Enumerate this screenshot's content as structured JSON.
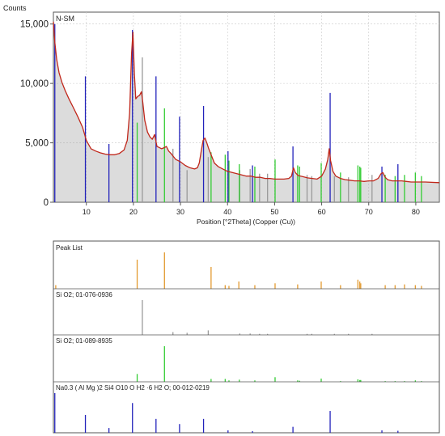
{
  "colors": {
    "profile": "#c0271b",
    "profile_fill": "#9a9a9a",
    "sio2_a": "#9a9a9a",
    "sio2_b": "#33cc33",
    "smectite": "#2222bb",
    "peaklist": "#e39a2f",
    "frame": "#555555",
    "grid": "#c8c8c8"
  },
  "chart_data": [
    {
      "type": "line",
      "title": "",
      "ylabel": "Counts",
      "xlabel": "Position [°2Theta] (Copper (Cu))",
      "sample_label": "N-SM",
      "xlim": [
        3,
        85
      ],
      "ylim": [
        0,
        16000
      ],
      "x_ticks": [
        10,
        20,
        30,
        40,
        50,
        60,
        70,
        80
      ],
      "y_ticks": [
        {
          "value": 0,
          "label": "0"
        },
        {
          "value": 5000,
          "label": "5,000"
        },
        {
          "value": 10000,
          "label": "10,000"
        },
        {
          "value": 15000,
          "label": "15,000"
        }
      ],
      "series": [
        {
          "role": "observed profile",
          "x": [
            3,
            3.3,
            3.7,
            4.2,
            4.8,
            5.5,
            6.3,
            7.2,
            8.2,
            9.2,
            10,
            11,
            12,
            13,
            14,
            15,
            16,
            17,
            18,
            18.7,
            19.2,
            19.6,
            19.9,
            20.2,
            20.5,
            20.9,
            21.3,
            21.7,
            22,
            22.4,
            23,
            23.5,
            24,
            24.5,
            25,
            25.5,
            26,
            26.6,
            27,
            27.5,
            28,
            29,
            30,
            31,
            32,
            33,
            33.6,
            34,
            34.4,
            34.8,
            35.2,
            35.6,
            36,
            36.6,
            37.2,
            38,
            39,
            40,
            41,
            42,
            43,
            44,
            45,
            46,
            47,
            48,
            49,
            50,
            51,
            52,
            53,
            53.6,
            54,
            54.4,
            55,
            56,
            57,
            58,
            59,
            60,
            60.8,
            61.3,
            61.6,
            61.9,
            62.4,
            63,
            64,
            65,
            66,
            67,
            68,
            69,
            70,
            71,
            72,
            72.6,
            73,
            73.5,
            74,
            75,
            76,
            77,
            78,
            79,
            80,
            82,
            85
          ],
          "y": [
            15200,
            13500,
            12000,
            10900,
            10100,
            9400,
            8700,
            8000,
            7200,
            6300,
            5200,
            4500,
            4300,
            4150,
            4050,
            4000,
            4000,
            4100,
            4400,
            5200,
            7500,
            12500,
            14300,
            10800,
            8700,
            8900,
            9000,
            9300,
            8400,
            6900,
            5900,
            5500,
            5300,
            5700,
            4700,
            4600,
            4500,
            4600,
            4700,
            4300,
            4100,
            3600,
            3400,
            3100,
            2900,
            2800,
            2900,
            3300,
            4300,
            5200,
            5400,
            5000,
            4500,
            3900,
            3300,
            3000,
            2800,
            2600,
            2500,
            2400,
            2300,
            2200,
            2200,
            2100,
            2100,
            2000,
            2000,
            1950,
            1950,
            1950,
            2000,
            2200,
            2900,
            2500,
            2250,
            2150,
            2050,
            2000,
            1950,
            2200,
            2800,
            3600,
            4500,
            3500,
            2600,
            2200,
            2000,
            1900,
            1850,
            1800,
            1800,
            1750,
            1800,
            1800,
            2000,
            2400,
            2500,
            2100,
            1900,
            1800,
            1800,
            1800,
            1750,
            1700,
            1700,
            1700,
            1650
          ]
        },
        {
          "name": "Na0.3 ( Al Mg )2 Si4 O10 O H2 ·6 H2 O; 00-012-0219",
          "role": "reference sticks",
          "x": [
            3.3,
            9.8,
            14.8,
            19.8,
            24.8,
            29.8,
            34.9,
            40.1,
            45.3,
            53.9,
            61.8,
            72.8,
            76.2
          ],
          "y": [
            15000,
            10600,
            4900,
            14500,
            10600,
            7200,
            8100,
            4300,
            3100,
            4700,
            9200,
            3000,
            3200
          ]
        },
        {
          "name": "Si O2; 01-089-8935",
          "role": "reference sticks",
          "x": [
            20.8,
            26.6,
            36.5,
            39.5,
            40.3,
            42.5,
            45.8,
            50.1,
            54.9,
            55.3,
            59.9,
            64.0,
            67.7,
            68.1,
            68.3,
            73.5,
            75.6,
            77.6,
            79.9,
            81.2
          ],
          "y": [
            6700,
            7900,
            4200,
            4000,
            3500,
            3200,
            3000,
            3600,
            3100,
            3000,
            3300,
            2500,
            3100,
            3000,
            2900,
            2300,
            2200,
            2300,
            2500,
            2200
          ]
        },
        {
          "name": "Si O2; 01-076-0936",
          "role": "reference sticks",
          "x": [
            21.9,
            28.4,
            31.4,
            35.9,
            42.6,
            44.8,
            46.8,
            48.5,
            56.9,
            57.9,
            62.7,
            65.7,
            70.7
          ],
          "y": [
            12200,
            4500,
            2700,
            3800,
            2700,
            2800,
            2400,
            2400,
            2300,
            2200,
            2200,
            2100,
            2300
          ]
        }
      ]
    },
    {
      "type": "bar",
      "title": "",
      "panels": [
        {
          "label": "Peak List",
          "x": [
            3.5,
            20.8,
            26.6,
            36.5,
            39.5,
            40.3,
            42.4,
            45.8,
            50.1,
            54.9,
            59.9,
            64.0,
            67.7,
            68.1,
            68.3,
            73.5,
            75.6,
            77.6,
            79.9,
            81.2
          ],
          "relative_intensity": [
            10,
            80,
            100,
            60,
            10,
            8,
            20,
            10,
            15,
            12,
            20,
            10,
            25,
            20,
            15,
            10,
            10,
            12,
            10,
            8
          ]
        },
        {
          "label": "Si O2; 01-076-0936",
          "x": [
            21.9,
            28.4,
            31.4,
            35.9,
            42.6,
            44.8,
            46.8,
            48.5,
            56.9,
            57.9,
            62.7,
            65.7,
            70.7
          ],
          "relative_intensity": [
            100,
            8,
            6,
            13,
            4,
            4,
            3,
            3,
            3,
            3,
            3,
            3,
            3
          ]
        },
        {
          "label": "Si O2; 01-089-8935",
          "x": [
            20.8,
            26.6,
            36.5,
            39.5,
            40.3,
            42.5,
            45.8,
            50.1,
            54.9,
            55.3,
            59.9,
            64.0,
            67.7,
            68.1,
            68.3,
            73.5,
            75.6,
            77.6,
            79.9,
            81.2
          ],
          "relative_intensity": [
            22,
            100,
            8,
            8,
            4,
            6,
            4,
            13,
            4,
            3,
            9,
            2,
            7,
            5,
            5,
            2,
            2,
            2,
            4,
            2
          ]
        },
        {
          "label": "Na0.3 ( Al Mg )2 Si4 O10 O H2 ·6 H2 O; 00-012-0219",
          "x": [
            3.3,
            9.8,
            14.8,
            19.8,
            24.8,
            29.8,
            34.9,
            40.1,
            45.3,
            53.9,
            61.8,
            72.8,
            76.2
          ],
          "relative_intensity": [
            100,
            45,
            12,
            75,
            35,
            22,
            35,
            6,
            4,
            15,
            55,
            6,
            5
          ]
        }
      ]
    }
  ]
}
